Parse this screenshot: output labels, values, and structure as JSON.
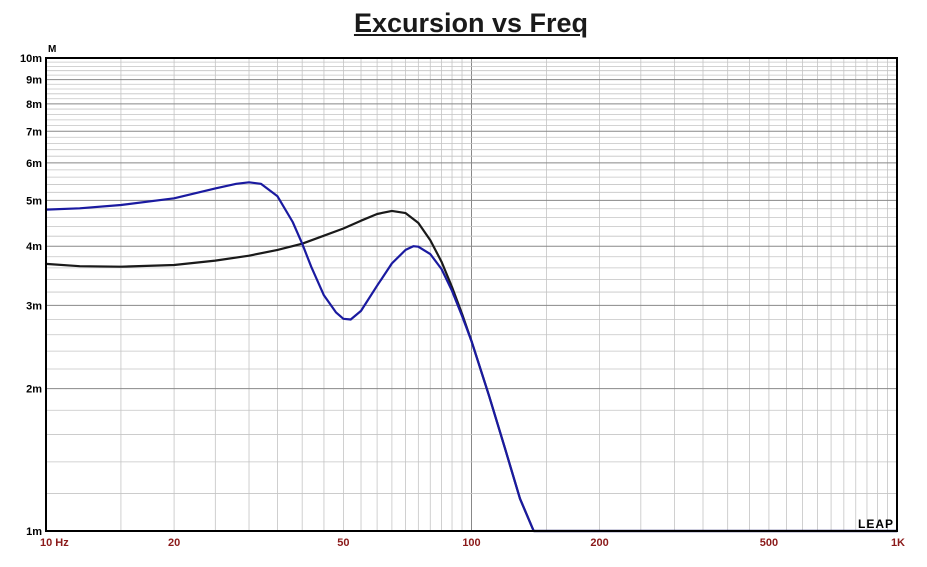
{
  "chart_data": {
    "type": "line",
    "title": "Excursion vs Freq",
    "y_unit": "M",
    "watermark": "LEAP",
    "x_scale": "log",
    "y_scale": "log",
    "xlim": [
      10,
      1000
    ],
    "ylim": [
      0.001,
      0.01
    ],
    "x_tick_labels": [
      {
        "value": 10,
        "label": "10 Hz"
      },
      {
        "value": 20,
        "label": "20"
      },
      {
        "value": 50,
        "label": "50"
      },
      {
        "value": 100,
        "label": "100"
      },
      {
        "value": 200,
        "label": "200"
      },
      {
        "value": 500,
        "label": "500"
      },
      {
        "value": 1000,
        "label": "1K"
      }
    ],
    "y_tick_labels": [
      {
        "value": 0.001,
        "label": "1m"
      },
      {
        "value": 0.002,
        "label": "2m"
      },
      {
        "value": 0.003,
        "label": "3m"
      },
      {
        "value": 0.004,
        "label": "4m"
      },
      {
        "value": 0.005,
        "label": "5m"
      },
      {
        "value": 0.006,
        "label": "6m"
      },
      {
        "value": 0.007,
        "label": "7m"
      },
      {
        "value": 0.008,
        "label": "8m"
      },
      {
        "value": 0.009,
        "label": "9m"
      },
      {
        "value": 0.01,
        "label": "10m"
      }
    ],
    "grid": true,
    "series": [
      {
        "color": "#1a1a1a",
        "points": [
          [
            10,
            0.00367
          ],
          [
            12,
            0.00363
          ],
          [
            15,
            0.00362
          ],
          [
            20,
            0.00365
          ],
          [
            25,
            0.00373
          ],
          [
            30,
            0.00382
          ],
          [
            35,
            0.00393
          ],
          [
            40,
            0.00405
          ],
          [
            45,
            0.00421
          ],
          [
            50,
            0.00436
          ],
          [
            55,
            0.00453
          ],
          [
            60,
            0.00468
          ],
          [
            65,
            0.00475
          ],
          [
            70,
            0.0047
          ],
          [
            75,
            0.00448
          ],
          [
            80,
            0.00412
          ],
          [
            85,
            0.00371
          ],
          [
            90,
            0.00328
          ],
          [
            95,
            0.00288
          ],
          [
            100,
            0.00252
          ],
          [
            110,
            0.00193
          ],
          [
            120,
            0.00149
          ],
          [
            130,
            0.00117
          ],
          [
            140,
            0.001
          ],
          [
            150,
            0.001
          ],
          [
            200,
            0.001
          ],
          [
            1000,
            0.001
          ]
        ]
      },
      {
        "color": "#1a1aa0",
        "points": [
          [
            10,
            0.00478
          ],
          [
            12,
            0.00481
          ],
          [
            15,
            0.00489
          ],
          [
            20,
            0.00505
          ],
          [
            25,
            0.0053
          ],
          [
            28,
            0.00542
          ],
          [
            30,
            0.00546
          ],
          [
            32,
            0.00542
          ],
          [
            35,
            0.0051
          ],
          [
            38,
            0.0045
          ],
          [
            40,
            0.00405
          ],
          [
            42,
            0.00362
          ],
          [
            45,
            0.00315
          ],
          [
            48,
            0.0029
          ],
          [
            50,
            0.00281
          ],
          [
            52,
            0.0028
          ],
          [
            55,
            0.00292
          ],
          [
            60,
            0.0033
          ],
          [
            65,
            0.00368
          ],
          [
            70,
            0.00393
          ],
          [
            73,
            0.004
          ],
          [
            75,
            0.00399
          ],
          [
            80,
            0.00385
          ],
          [
            85,
            0.00358
          ],
          [
            90,
            0.00322
          ],
          [
            95,
            0.00285
          ],
          [
            100,
            0.00252
          ],
          [
            110,
            0.00193
          ],
          [
            120,
            0.00149
          ],
          [
            130,
            0.00117
          ],
          [
            140,
            0.001
          ],
          [
            150,
            0.001
          ],
          [
            200,
            0.001
          ],
          [
            1000,
            0.001
          ]
        ]
      }
    ]
  }
}
